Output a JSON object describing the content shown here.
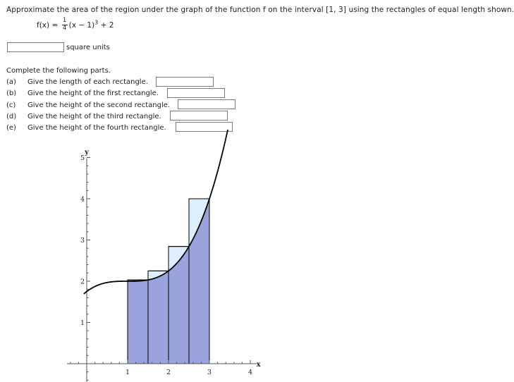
{
  "question": "Approximate the area of the region under the graph of the function f on the interval [1, 3] using the rectangles of equal length shown.",
  "function": {
    "lhs": "f(x) =",
    "numerator": "1",
    "denominator": "4",
    "body": "(x − 1)",
    "power": "3",
    "tail": " + 2"
  },
  "area_answer": {
    "value": "",
    "unit": "square units"
  },
  "instructions": "Complete the following parts.",
  "parts": [
    {
      "letter": "(a)",
      "text": "Give the length of each rectangle.",
      "value": ""
    },
    {
      "letter": "(b)",
      "text": "Give the height of the first rectangle.",
      "value": ""
    },
    {
      "letter": "(c)",
      "text": "Give the height of the second rectangle.",
      "value": ""
    },
    {
      "letter": "(d)",
      "text": "Give the height of the third rectangle.",
      "value": ""
    },
    {
      "letter": "(e)",
      "text": "Give the height of the fourth rectangle.",
      "value": ""
    }
  ],
  "chart_data": {
    "type": "area",
    "function_expr": "(x-1)^3/4 + 2",
    "xlabel": "x",
    "ylabel": "y",
    "xlim": [
      -0.5,
      4.2
    ],
    "ylim": [
      -0.5,
      5
    ],
    "x_ticks": [
      1,
      2,
      3,
      4
    ],
    "y_ticks": [
      1,
      2,
      3,
      4,
      5
    ],
    "rectangles": [
      {
        "x0": 1.0,
        "x1": 1.5,
        "height": 2.03125
      },
      {
        "x0": 1.5,
        "x1": 2.0,
        "height": 2.25
      },
      {
        "x0": 2.0,
        "x1": 2.5,
        "height": 2.84375
      },
      {
        "x0": 2.5,
        "x1": 3.0,
        "height": 4.0
      }
    ],
    "colors": {
      "area_fill": "#9aa3dc",
      "rect_fill": "#ddeefc",
      "stroke": "#000000"
    }
  }
}
